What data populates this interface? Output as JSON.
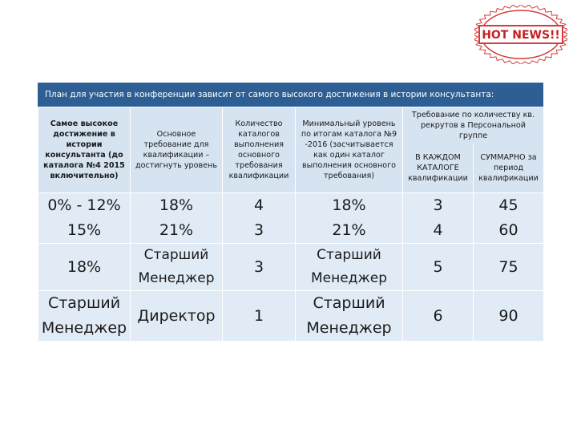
{
  "stamp": "HOT NEWS!!",
  "table": {
    "title": "План для участия в конференции зависит от самого высокого достижения в истории консультанта:",
    "header": [
      "Самое высокое достижение в истории консультанта (до каталога №4 2015 включительно)",
      "Основное требование для квалификации – достигнуть уровень",
      "Количество каталогов выполнения основного требования квалификации",
      "Минимальный уровень по итогам каталога №9 -2016 (засчитывается как один каталог выполнения основного требования)",
      "Требование по количеству кв. рекрутов в Персональной группе"
    ],
    "subheader": [
      "В КАЖДОМ КАТАЛОГЕ квалификации",
      "СУММАРНО за период квалификации"
    ],
    "rows": [
      [
        [
          "0% - 12%",
          "15%"
        ],
        [
          "18%",
          "21%"
        ],
        [
          "4",
          "3"
        ],
        [
          "18%",
          "21%"
        ],
        [
          "3",
          "4"
        ],
        [
          "45",
          "60"
        ]
      ],
      [
        [
          "18%"
        ],
        [
          "Старший",
          "Менеджер"
        ],
        [
          "3"
        ],
        [
          "Старший",
          "Менеджер"
        ],
        [
          "5"
        ],
        [
          "75"
        ]
      ],
      [
        [
          "Старший",
          "Менеджер"
        ],
        [
          "Директор"
        ],
        [
          "1"
        ],
        [
          "Старший",
          "Менеджер"
        ],
        [
          "6"
        ],
        [
          "90"
        ]
      ]
    ]
  }
}
